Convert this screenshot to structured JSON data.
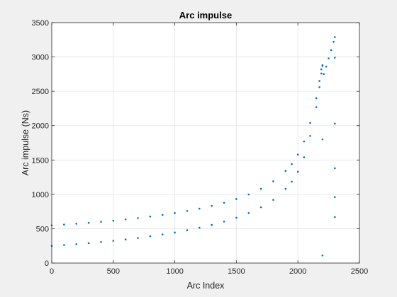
{
  "chart_data": {
    "type": "scatter",
    "title": "Arc impulse",
    "xlabel": "Arc Index",
    "ylabel": "Arc impulse (Ns)",
    "xlim": [
      0,
      2500
    ],
    "ylim": [
      0,
      3500
    ],
    "xticks": [
      0,
      500,
      1000,
      1500,
      2000,
      2500
    ],
    "yticks": [
      0,
      500,
      1000,
      1500,
      2000,
      2500,
      3000,
      3500
    ],
    "grid": true,
    "color": "#0072BD",
    "series": [
      {
        "values": [
          [
            0,
            548
          ],
          [
            100,
            560
          ],
          [
            200,
            572
          ],
          [
            300,
            586
          ],
          [
            400,
            601
          ],
          [
            500,
            617
          ],
          [
            600,
            635
          ],
          [
            700,
            655
          ],
          [
            800,
            677
          ],
          [
            900,
            701
          ],
          [
            1000,
            728
          ],
          [
            1100,
            758
          ],
          [
            1200,
            792
          ],
          [
            1300,
            832
          ],
          [
            1400,
            877
          ],
          [
            1500,
            932
          ],
          [
            1600,
            998
          ],
          [
            1700,
            1080
          ],
          [
            1800,
            1190
          ],
          [
            1900,
            1340
          ],
          [
            1950,
            1440
          ],
          [
            2000,
            1580
          ],
          [
            2050,
            1770
          ],
          [
            2100,
            2040
          ],
          [
            2150,
            2400
          ],
          [
            2175,
            2650
          ],
          [
            2190,
            2820
          ],
          [
            2200,
            2880
          ]
        ]
      },
      {
        "values": [
          [
            0,
            250
          ],
          [
            100,
            262
          ],
          [
            200,
            275
          ],
          [
            300,
            290
          ],
          [
            400,
            306
          ],
          [
            500,
            324
          ],
          [
            600,
            344
          ],
          [
            700,
            366
          ],
          [
            800,
            390
          ],
          [
            900,
            416
          ],
          [
            1000,
            445
          ],
          [
            1100,
            478
          ],
          [
            1200,
            514
          ],
          [
            1300,
            555
          ],
          [
            1400,
            603
          ],
          [
            1500,
            660
          ],
          [
            1600,
            728
          ],
          [
            1700,
            812
          ],
          [
            1800,
            920
          ],
          [
            1900,
            1080
          ],
          [
            1950,
            1185
          ],
          [
            2000,
            1330
          ],
          [
            2050,
            1540
          ],
          [
            2100,
            1850
          ],
          [
            2150,
            2270
          ],
          [
            2175,
            2560
          ],
          [
            2190,
            2760
          ],
          [
            2200,
            2870
          ]
        ]
      },
      {
        "values": [
          [
            2210,
            2750
          ],
          [
            2230,
            2860
          ],
          [
            2250,
            2980
          ],
          [
            2270,
            3100
          ],
          [
            2290,
            3220
          ],
          [
            2300,
            3290
          ]
        ]
      },
      {
        "values": [
          [
            2200,
            1800
          ],
          [
            2200,
            110
          ],
          [
            2300,
            2990
          ],
          [
            2300,
            2030
          ],
          [
            2300,
            1380
          ],
          [
            2300,
            960
          ],
          [
            2300,
            670
          ]
        ]
      }
    ]
  }
}
